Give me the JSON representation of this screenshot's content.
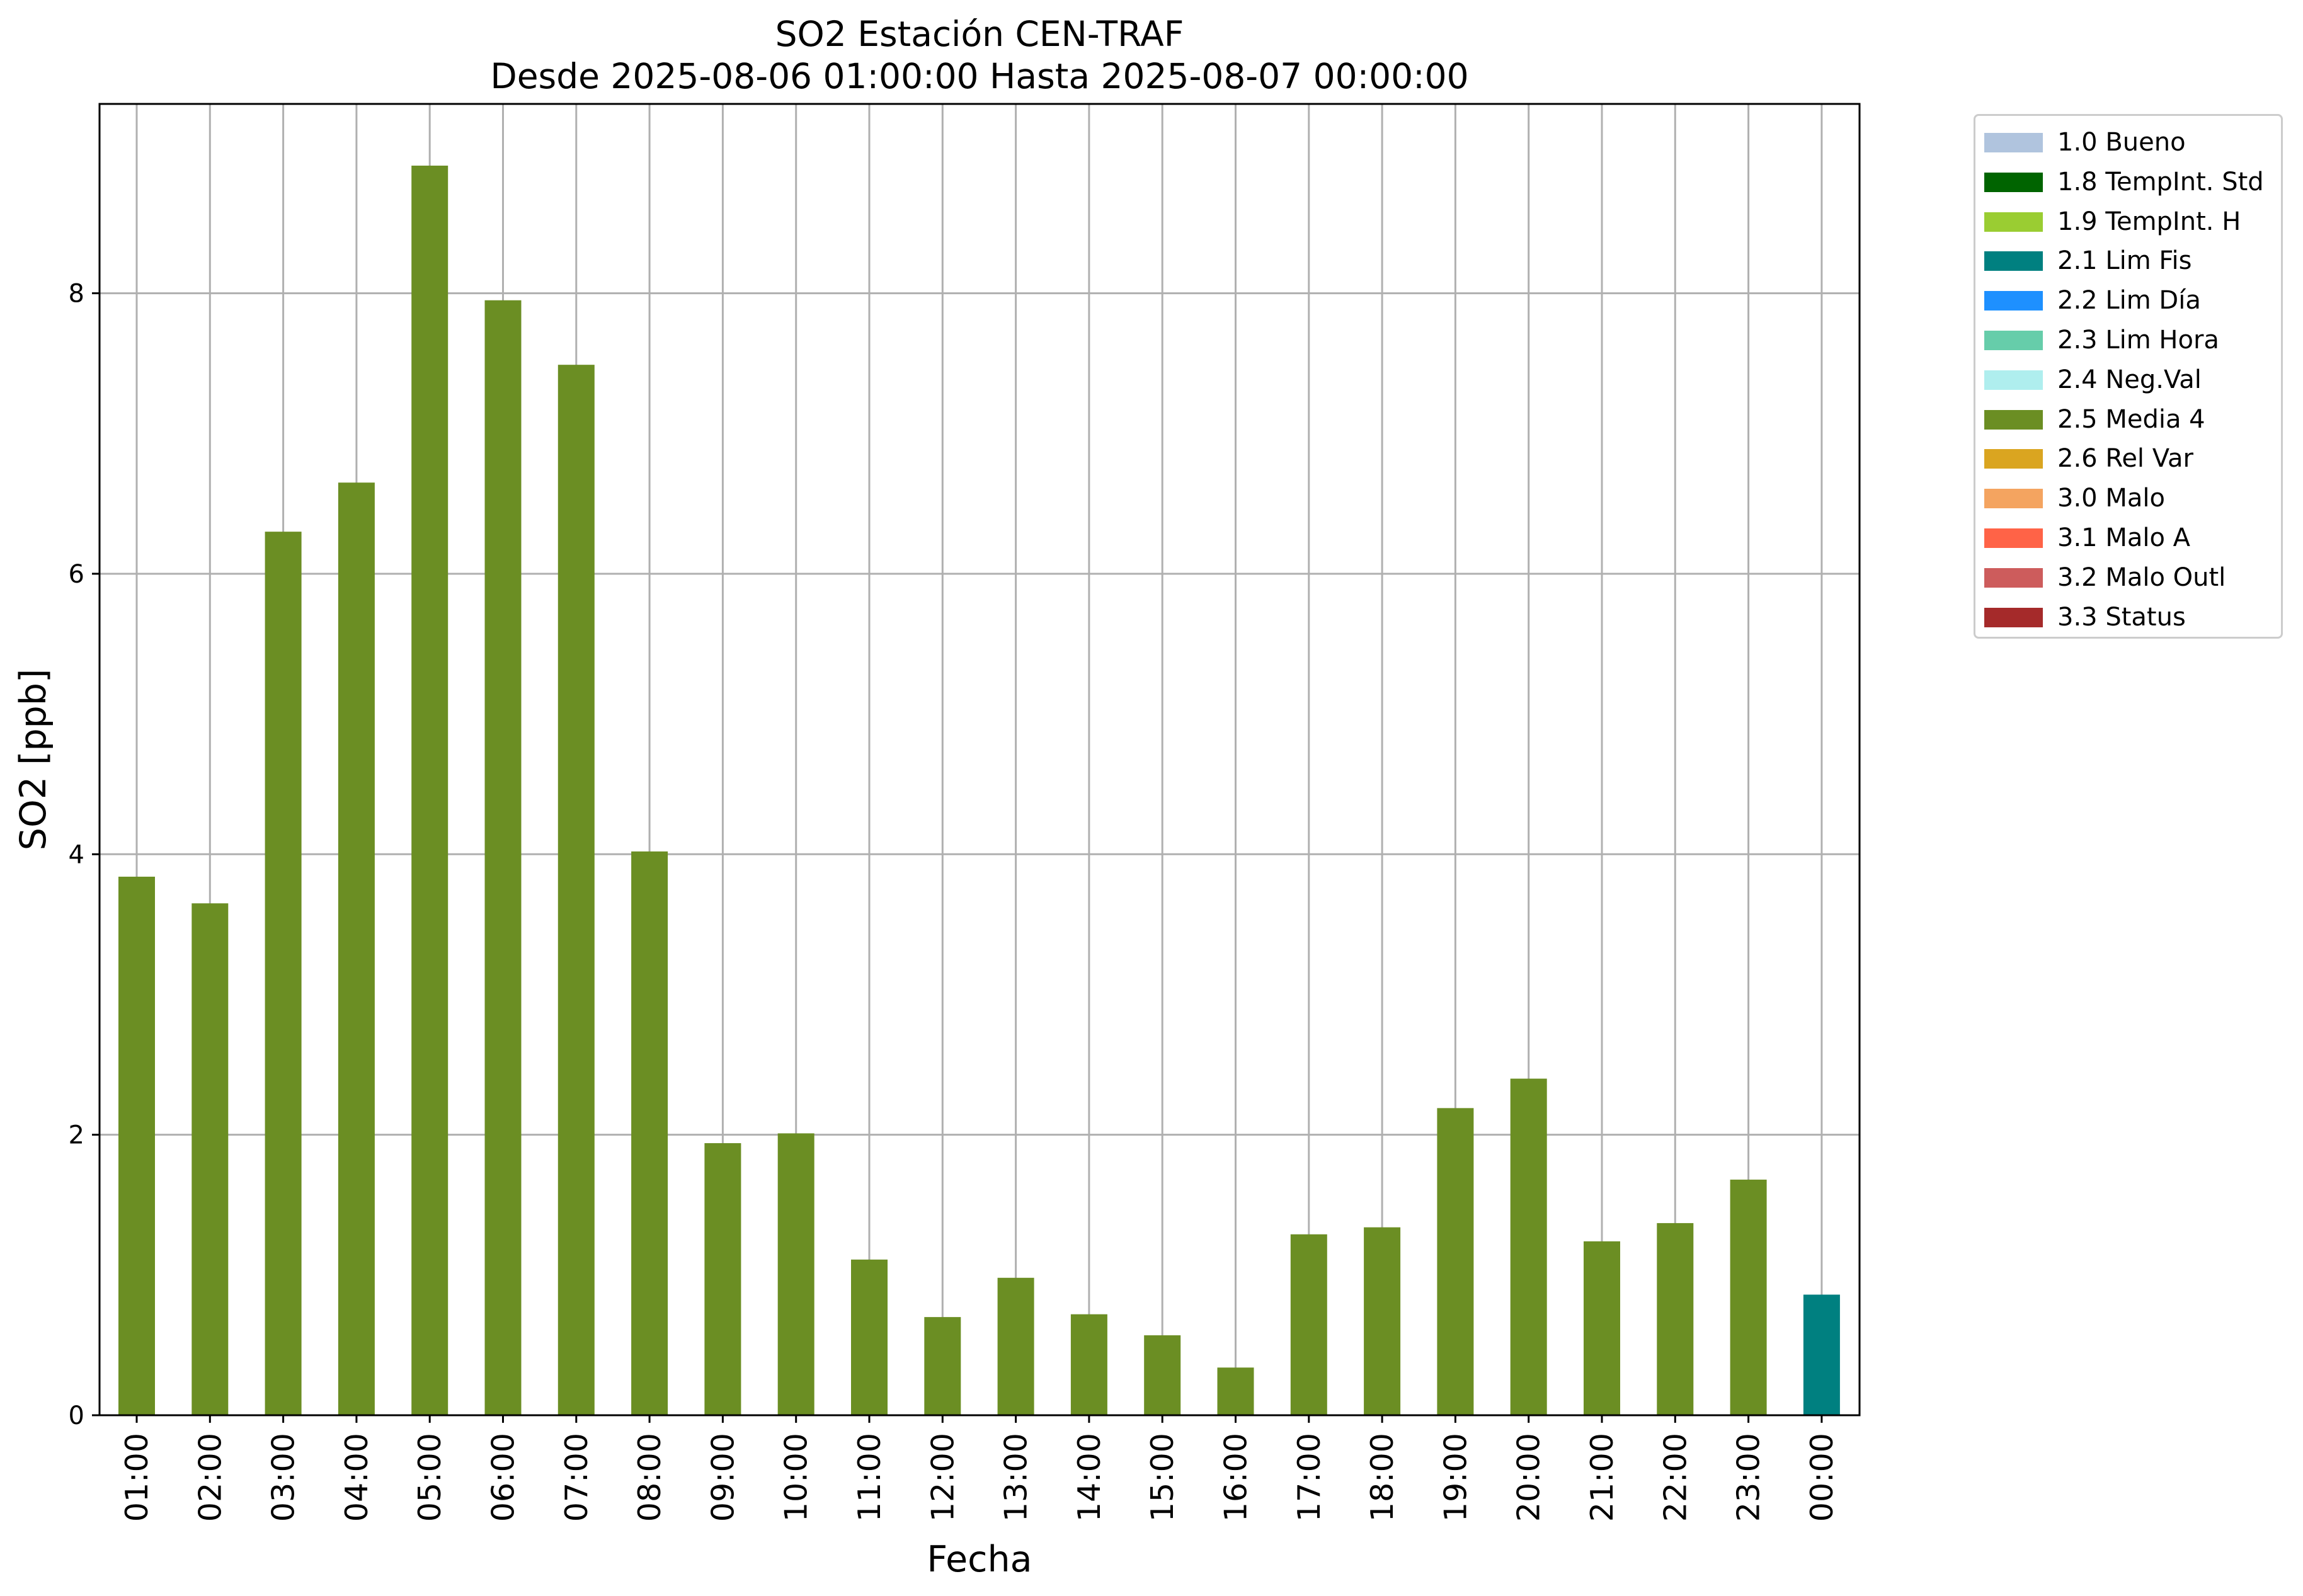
{
  "chart_data": {
    "type": "bar",
    "title": "SO2 Estación CEN-TRAF",
    "subtitle": "Desde 2025-08-06 01:00:00 Hasta 2025-08-07 00:00:00",
    "xlabel": "Fecha",
    "ylabel": "SO2 [ppb]",
    "ylim": [
      0,
      9.35
    ],
    "yticks": [
      "0",
      "2",
      "4",
      "6",
      "8"
    ],
    "grid": true,
    "legend_position": "outside-top-right",
    "categories": [
      "01:00",
      "02:00",
      "03:00",
      "04:00",
      "05:00",
      "06:00",
      "07:00",
      "08:00",
      "09:00",
      "10:00",
      "11:00",
      "12:00",
      "13:00",
      "14:00",
      "15:00",
      "16:00",
      "17:00",
      "18:00",
      "19:00",
      "20:00",
      "21:00",
      "22:00",
      "23:00",
      "00:00"
    ],
    "values": [
      3.84,
      3.65,
      6.3,
      6.65,
      8.91,
      7.95,
      7.49,
      4.02,
      1.94,
      2.01,
      1.11,
      0.7,
      0.98,
      0.72,
      0.57,
      0.34,
      1.29,
      1.34,
      2.19,
      2.4,
      1.24,
      1.37,
      1.68,
      0.86
    ],
    "bar_flags": [
      "2.5 Media 4",
      "2.5 Media 4",
      "2.5 Media 4",
      "2.5 Media 4",
      "2.5 Media 4",
      "2.5 Media 4",
      "2.5 Media 4",
      "2.5 Media 4",
      "2.5 Media 4",
      "2.5 Media 4",
      "2.5 Media 4",
      "2.5 Media 4",
      "2.5 Media 4",
      "2.5 Media 4",
      "2.5 Media 4",
      "2.5 Media 4",
      "2.5 Media 4",
      "2.5 Media 4",
      "2.5 Media 4",
      "2.5 Media 4",
      "2.5 Media 4",
      "2.5 Media 4",
      "2.5 Media 4",
      "2.1 Lim Fis"
    ],
    "legend": [
      {
        "label": "1.0 Bueno",
        "color": "#b0c4de"
      },
      {
        "label": "1.8 TempInt. Std",
        "color": "#006400"
      },
      {
        "label": "1.9 TempInt. H",
        "color": "#9acd32"
      },
      {
        "label": "2.1 Lim Fis",
        "color": "#008080"
      },
      {
        "label": "2.2 Lim Día",
        "color": "#1e90ff"
      },
      {
        "label": "2.3 Lim Hora",
        "color": "#66cdaa"
      },
      {
        "label": "2.4 Neg.Val",
        "color": "#afeeee"
      },
      {
        "label": "2.5 Media 4",
        "color": "#6b8e23"
      },
      {
        "label": "2.6 Rel Var",
        "color": "#daa520"
      },
      {
        "label": "3.0 Malo",
        "color": "#f4a460"
      },
      {
        "label": "3.1 Malo A",
        "color": "#ff6347"
      },
      {
        "label": "3.2 Malo Outl",
        "color": "#cd5c5c"
      },
      {
        "label": "3.3 Status",
        "color": "#a52a2a"
      }
    ]
  }
}
